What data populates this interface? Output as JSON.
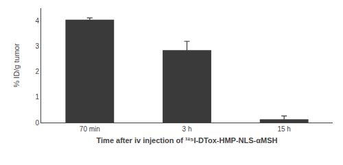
{
  "chart_data": {
    "type": "bar",
    "categories": [
      "70 min",
      "3 h",
      "15 h"
    ],
    "values": [
      4.05,
      2.85,
      0.13
    ],
    "errors": [
      0.07,
      0.35,
      0.13
    ],
    "color": "#3a3a3a",
    "xlabel": "Time after iv injection of ¹²⁵I-DTox-HMP-NLS-αMSH",
    "ylabel": "% ID/g tumor",
    "ylim": [
      0,
      4.5
    ],
    "yticks": [
      0,
      1,
      2,
      3,
      4
    ],
    "grid": false
  }
}
